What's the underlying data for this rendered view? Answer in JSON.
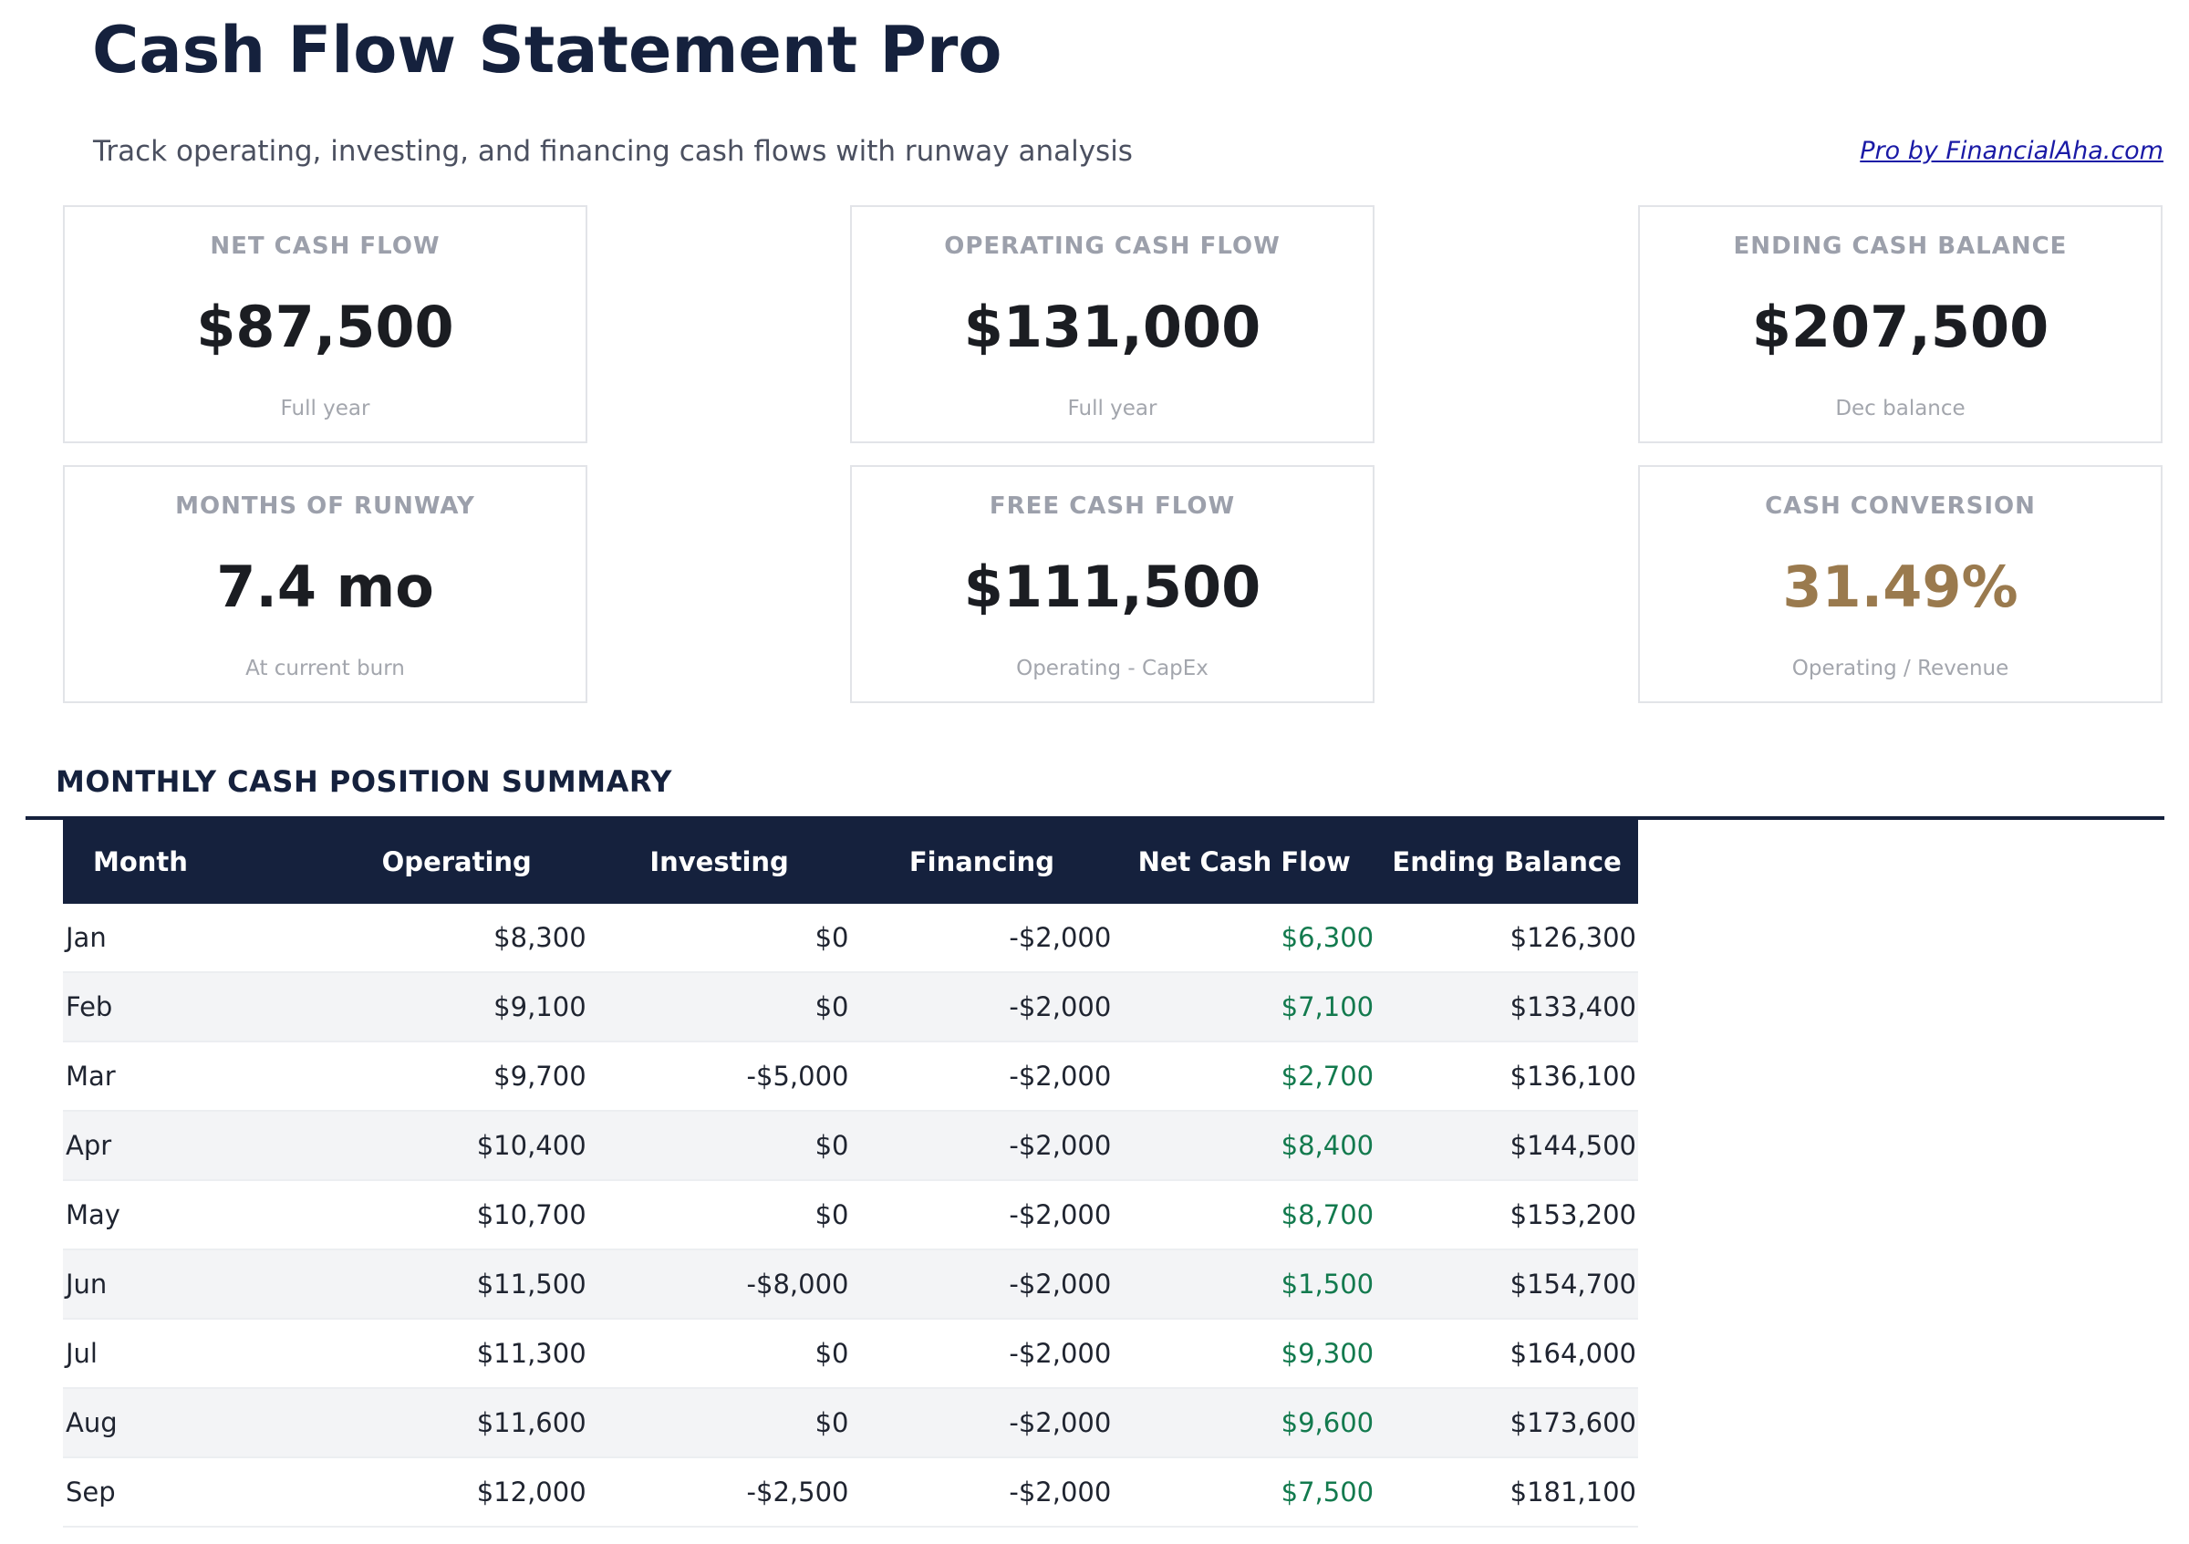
{
  "header": {
    "title": "Cash Flow Statement Pro",
    "subtitle": "Track operating, investing, and financing cash flows with runway analysis",
    "pro_link": "Pro by FinancialAha.com"
  },
  "cards": [
    {
      "label": "NET CASH FLOW",
      "value": "$87,500",
      "sub": "Full year"
    },
    {
      "label": "OPERATING CASH FLOW",
      "value": "$131,000",
      "sub": "Full year"
    },
    {
      "label": "ENDING CASH BALANCE",
      "value": "$207,500",
      "sub": "Dec balance"
    },
    {
      "label": "MONTHS OF RUNWAY",
      "value": "7.4 mo",
      "sub": "At current burn"
    },
    {
      "label": "FREE CASH FLOW",
      "value": "$111,500",
      "sub": "Operating - CapEx"
    },
    {
      "label": "CASH CONVERSION",
      "value": "31.49%",
      "sub": "Operating / Revenue"
    }
  ],
  "colors": {
    "navy": "#15213d",
    "positive": "#137a4e",
    "accent_gold": "#9a7a4e"
  },
  "summary": {
    "title": "MONTHLY CASH POSITION SUMMARY",
    "columns": [
      "Month",
      "Operating",
      "Investing",
      "Financing",
      "Net Cash Flow",
      "Ending Balance"
    ],
    "rows": [
      [
        "Jan",
        "$8,300",
        "$0",
        "-$2,000",
        "$6,300",
        "$126,300"
      ],
      [
        "Feb",
        "$9,100",
        "$0",
        "-$2,000",
        "$7,100",
        "$133,400"
      ],
      [
        "Mar",
        "$9,700",
        "-$5,000",
        "-$2,000",
        "$2,700",
        "$136,100"
      ],
      [
        "Apr",
        "$10,400",
        "$0",
        "-$2,000",
        "$8,400",
        "$144,500"
      ],
      [
        "May",
        "$10,700",
        "$0",
        "-$2,000",
        "$8,700",
        "$153,200"
      ],
      [
        "Jun",
        "$11,500",
        "-$8,000",
        "-$2,000",
        "$1,500",
        "$154,700"
      ],
      [
        "Jul",
        "$11,300",
        "$0",
        "-$2,000",
        "$9,300",
        "$164,000"
      ],
      [
        "Aug",
        "$11,600",
        "$0",
        "-$2,000",
        "$9,600",
        "$173,600"
      ],
      [
        "Sep",
        "$12,000",
        "-$2,500",
        "-$2,000",
        "$7,500",
        "$181,100"
      ]
    ]
  }
}
